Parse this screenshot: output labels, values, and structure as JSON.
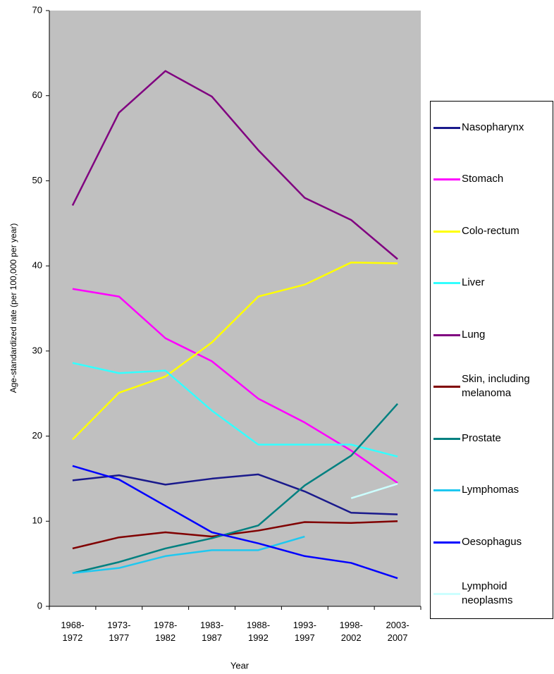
{
  "chart_data": {
    "type": "line",
    "ylabel": "Age-standardized rate (per 100,000 per year)",
    "xlabel": "Year",
    "categories": [
      "1968-1972",
      "1973-1977",
      "1978-1982",
      "1983-1987",
      "1988-1992",
      "1993-1997",
      "1998-2002",
      "2003-2007"
    ],
    "ylim": [
      0,
      70
    ],
    "yticks": [
      0,
      10,
      20,
      30,
      40,
      50,
      60,
      70
    ],
    "grid": false,
    "background": "#c0c0c0",
    "legend": "right",
    "series": [
      {
        "name": "Nasopharynx",
        "color": "#1a1a8c",
        "values": [
          14.8,
          15.4,
          14.3,
          15.0,
          15.5,
          13.5,
          11.0,
          10.8
        ]
      },
      {
        "name": "Stomach",
        "color": "#ff00ff",
        "values": [
          37.3,
          36.4,
          31.5,
          28.8,
          24.4,
          21.6,
          18.3,
          14.5
        ]
      },
      {
        "name": "Colo-rectum",
        "color": "#ffff00",
        "values": [
          19.6,
          25.1,
          27.0,
          31.0,
          36.4,
          37.8,
          40.4,
          40.3
        ]
      },
      {
        "name": "Liver",
        "color": "#33ffff",
        "values": [
          28.6,
          27.4,
          27.7,
          23.0,
          19.0,
          19.0,
          19.0,
          17.6
        ]
      },
      {
        "name": "Lung",
        "color": "#800080",
        "values": [
          47.1,
          58.0,
          62.9,
          59.9,
          53.6,
          48.0,
          45.4,
          40.8
        ]
      },
      {
        "name": "Skin, including melanoma",
        "color": "#800000",
        "values": [
          6.8,
          8.1,
          8.7,
          8.2,
          8.9,
          9.9,
          9.8,
          10.0
        ]
      },
      {
        "name": "Prostate",
        "color": "#008080",
        "values": [
          3.9,
          5.2,
          6.8,
          8.0,
          9.5,
          14.2,
          17.7,
          23.8
        ]
      },
      {
        "name": "Lymphomas",
        "color": "#1ec8f0",
        "values": [
          3.9,
          4.5,
          5.9,
          6.6,
          6.6,
          8.2,
          null,
          null
        ]
      },
      {
        "name": "Oesophagus",
        "color": "#0000ff",
        "values": [
          16.5,
          14.9,
          11.8,
          8.7,
          7.4,
          5.9,
          5.1,
          3.3
        ]
      },
      {
        "name": "Lymphoid neoplasms",
        "color": "#ccffff",
        "values": [
          null,
          null,
          null,
          null,
          null,
          null,
          12.7,
          14.4
        ]
      }
    ]
  }
}
